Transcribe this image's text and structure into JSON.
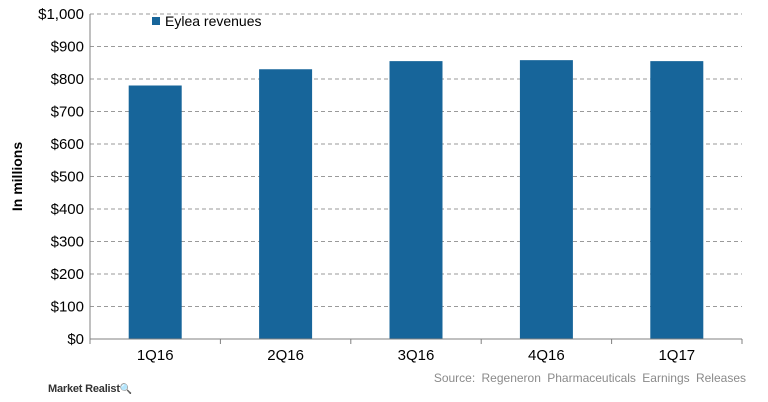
{
  "chart_data": {
    "type": "bar",
    "categories": [
      "1Q16",
      "2Q16",
      "3Q16",
      "4Q16",
      "1Q17"
    ],
    "series": [
      {
        "name": "Eylea revenues",
        "values": [
          780,
          830,
          855,
          858,
          855
        ],
        "color": "#17659a"
      }
    ],
    "ylabel": "In millions",
    "ylim": [
      0,
      1000
    ],
    "yticks": [
      0,
      100,
      200,
      300,
      400,
      500,
      600,
      700,
      800,
      900,
      1000
    ],
    "ytick_labels": [
      "$0",
      "$100",
      "$200",
      "$300",
      "$400",
      "$500",
      "$600",
      "$700",
      "$800",
      "$900",
      "$1,000"
    ],
    "grid": true,
    "legend_position": "top-left"
  },
  "source_text": "Source: Regeneron Pharmaceuticals Earnings Releases",
  "brand": {
    "name": "Market Realist",
    "mark": "🔍"
  }
}
